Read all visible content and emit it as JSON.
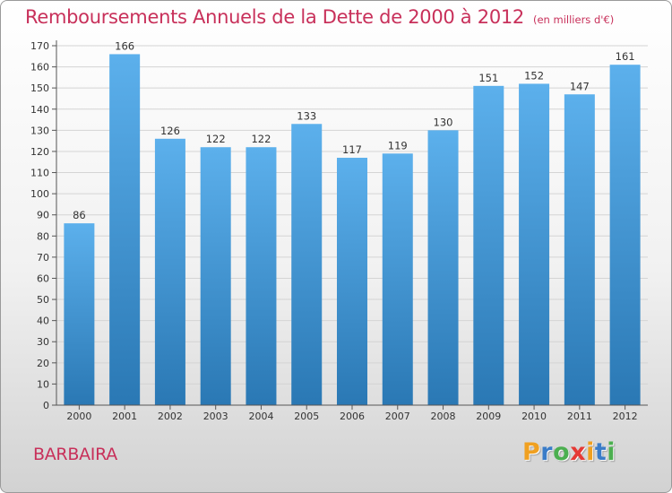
{
  "title": "Remboursements Annuels de la Dette de 2000 à 2012",
  "unit_note": "(en milliers d'€)",
  "commune": "BARBAIRA",
  "logo": {
    "letters": [
      "P",
      "r",
      "o",
      "x",
      "i",
      "t",
      "i"
    ],
    "colors": [
      "#f0a020",
      "#3a7cc8",
      "#4caf50",
      "#e53935",
      "#f0a020",
      "#3a7cc8",
      "#4caf50"
    ]
  },
  "colors": {
    "bar_top": "#5cb0ec",
    "bar_bottom": "#2a78b4",
    "title": "#c8305a"
  },
  "chart_data": {
    "type": "bar",
    "categories": [
      "2000",
      "2001",
      "2002",
      "2003",
      "2004",
      "2005",
      "2006",
      "2007",
      "2008",
      "2009",
      "2010",
      "2011",
      "2012"
    ],
    "values": [
      86,
      166,
      126,
      122,
      122,
      133,
      117,
      119,
      130,
      151,
      152,
      147,
      161
    ],
    "data_labels": [
      "86",
      "166",
      "126",
      "122",
      "122",
      "133",
      "117",
      "119",
      "130",
      "151",
      "152",
      "147",
      "161"
    ],
    "y_ticks": [
      "0",
      "10",
      "20",
      "30",
      "40",
      "50",
      "60",
      "70",
      "80",
      "90",
      "100",
      "110",
      "120",
      "130",
      "140",
      "150",
      "160",
      "170"
    ],
    "ylim": [
      0,
      170
    ],
    "grid": true
  }
}
